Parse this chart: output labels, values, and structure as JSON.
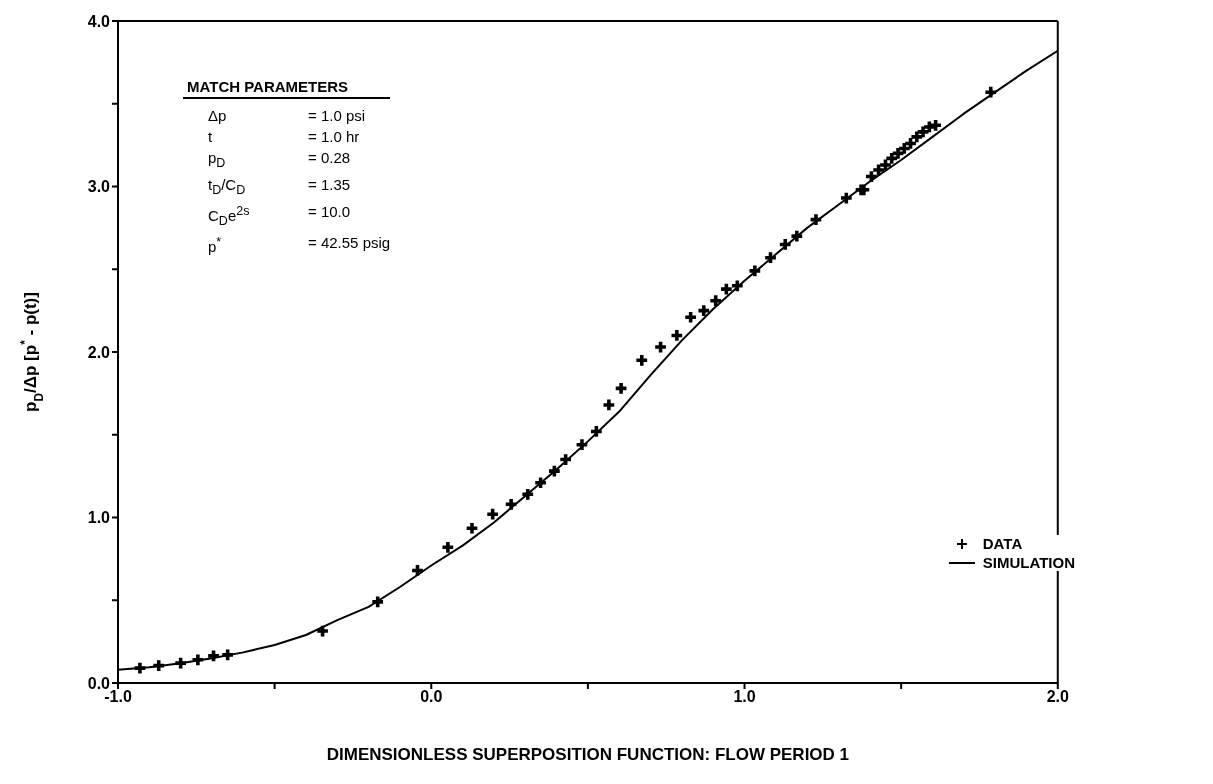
{
  "chart_data": {
    "type": "scatter",
    "xlabel": "DIMENSIONLESS SUPERPOSITION FUNCTION: FLOW PERIOD 1",
    "ylabel": "p$_{D}$/Δp [p$^{*}$ - p(t)]",
    "xlim": [
      -1.0,
      2.0
    ],
    "xticks": [
      {
        "value": -1,
        "label": "-1.0"
      },
      {
        "value": -0.5,
        "label": null
      },
      {
        "value": 0,
        "label": "0.0"
      },
      {
        "value": 0.5,
        "label": null
      },
      {
        "value": 1,
        "label": "1.0"
      },
      {
        "value": 1.5,
        "label": null
      },
      {
        "value": 2,
        "label": "2.0"
      }
    ],
    "ylim": [
      0,
      4.0
    ],
    "yticks": [
      {
        "value": 0,
        "label": "0.0"
      },
      {
        "value": 0.5,
        "label": null
      },
      {
        "value": 1,
        "label": "1.0"
      },
      {
        "value": 1.5,
        "label": null
      },
      {
        "value": 2,
        "label": "2.0"
      },
      {
        "value": 2.5,
        "label": null
      },
      {
        "value": 3,
        "label": "3.0"
      },
      {
        "value": 3.5,
        "label": null
      },
      {
        "value": 4,
        "label": "4.0"
      }
    ],
    "legend": "bottom right",
    "annotations": [
      "MATCH PARAMETERS",
      "Δp = 1.0 psi",
      "t = 1.0 hr",
      "p$_{D}$ = 0.28",
      "t$_{D}$/C$_{D}$ = 1.35",
      "C$_{D}$e$^{2s}$ = 10.0",
      "p$^{*}$ = 42.55 psig"
    ],
    "series": [
      {
        "name": "DATA",
        "marker": "cross",
        "color": "#000000",
        "x": [
          -0.93,
          -0.87,
          -0.8,
          -0.745,
          -0.695,
          -0.65,
          -0.347,
          -0.171,
          -0.044,
          0.053,
          0.13,
          0.196,
          0.255,
          0.308,
          0.349,
          0.393,
          0.429,
          0.481,
          0.527,
          0.567,
          0.606,
          0.672,
          0.732,
          0.784,
          0.828,
          0.87,
          0.908,
          0.942,
          0.977,
          1.033,
          1.083,
          1.13,
          1.167,
          1.228,
          1.325,
          1.372,
          1.381,
          1.405,
          1.428,
          1.45,
          1.47,
          1.49,
          1.51,
          1.53,
          1.55,
          1.57,
          1.59,
          1.61,
          1.786
        ],
        "values": [
          0.09,
          0.105,
          0.12,
          0.14,
          0.164,
          0.17,
          0.314,
          0.49,
          0.68,
          0.82,
          0.935,
          1.02,
          1.08,
          1.14,
          1.21,
          1.28,
          1.35,
          1.44,
          1.52,
          1.68,
          1.78,
          1.95,
          2.03,
          2.1,
          2.21,
          2.25,
          2.31,
          2.38,
          2.4,
          2.49,
          2.57,
          2.65,
          2.7,
          2.8,
          2.93,
          2.98,
          2.98,
          3.06,
          3.1,
          3.13,
          3.17,
          3.2,
          3.23,
          3.26,
          3.3,
          3.33,
          3.36,
          3.37,
          3.57
        ]
      },
      {
        "name": "SIMULATION",
        "type": "line",
        "color": "#000000",
        "x": [
          -1.0,
          -0.9,
          -0.8,
          -0.7,
          -0.6,
          -0.5,
          -0.4,
          -0.3,
          -0.2,
          -0.1,
          0.0,
          0.1,
          0.2,
          0.3,
          0.4,
          0.5,
          0.6,
          0.7,
          0.8,
          0.9,
          1.0,
          1.1,
          1.2,
          1.3,
          1.4,
          1.5,
          1.6,
          1.7,
          1.8,
          1.9,
          2.0
        ],
        "values": [
          0.08,
          0.095,
          0.12,
          0.15,
          0.185,
          0.23,
          0.29,
          0.38,
          0.46,
          0.58,
          0.71,
          0.83,
          0.97,
          1.13,
          1.29,
          1.46,
          1.64,
          1.86,
          2.07,
          2.26,
          2.43,
          2.59,
          2.75,
          2.89,
          3.03,
          3.16,
          3.3,
          3.44,
          3.57,
          3.7,
          3.82
        ]
      }
    ]
  }
}
